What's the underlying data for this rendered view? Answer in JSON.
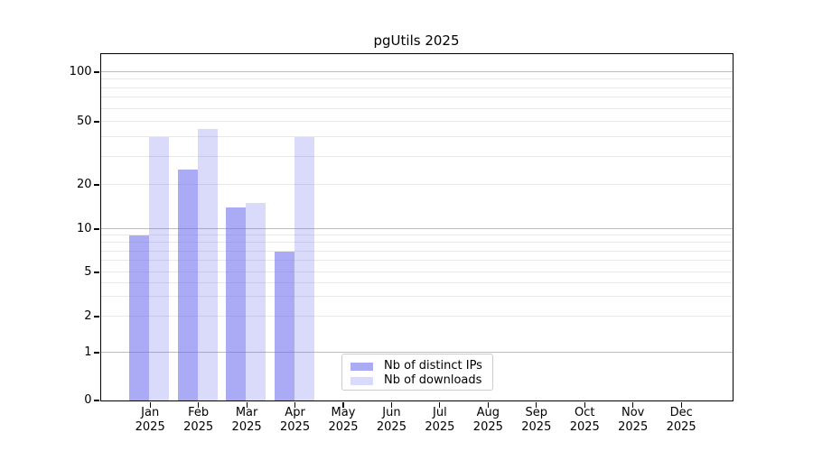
{
  "chart_data": {
    "type": "bar",
    "title": "pgUtils 2025",
    "x_months": [
      "Jan",
      "Feb",
      "Mar",
      "Apr",
      "May",
      "Jun",
      "Jul",
      "Aug",
      "Sep",
      "Oct",
      "Nov",
      "Dec"
    ],
    "x_year": "2025",
    "xlabel": "",
    "ylabel": "",
    "y_scale": "symlog",
    "ylim": [
      0,
      128
    ],
    "y_ticks": [
      0,
      1,
      2,
      5,
      10,
      20,
      50,
      100
    ],
    "major_gridlines": [
      1,
      10,
      100
    ],
    "minor_gridlines": [
      2,
      3,
      4,
      5,
      6,
      7,
      8,
      9,
      20,
      30,
      40,
      50,
      60,
      70,
      80,
      90
    ],
    "grid": true,
    "legend_position": "inside-bottom-center",
    "series": [
      {
        "name": "Nb of distinct IPs",
        "color": "#aaaaf8",
        "fill": "rgba(108,108,237,0.58)",
        "values": [
          9,
          25,
          14,
          7,
          null,
          null,
          null,
          null,
          null,
          null,
          null,
          null
        ]
      },
      {
        "name": "Nb of downloads",
        "color": "#dadafa",
        "fill": "rgba(108,108,237,0.25)",
        "values": [
          40,
          45,
          15,
          40,
          null,
          null,
          null,
          null,
          null,
          null,
          null,
          null
        ]
      }
    ]
  }
}
